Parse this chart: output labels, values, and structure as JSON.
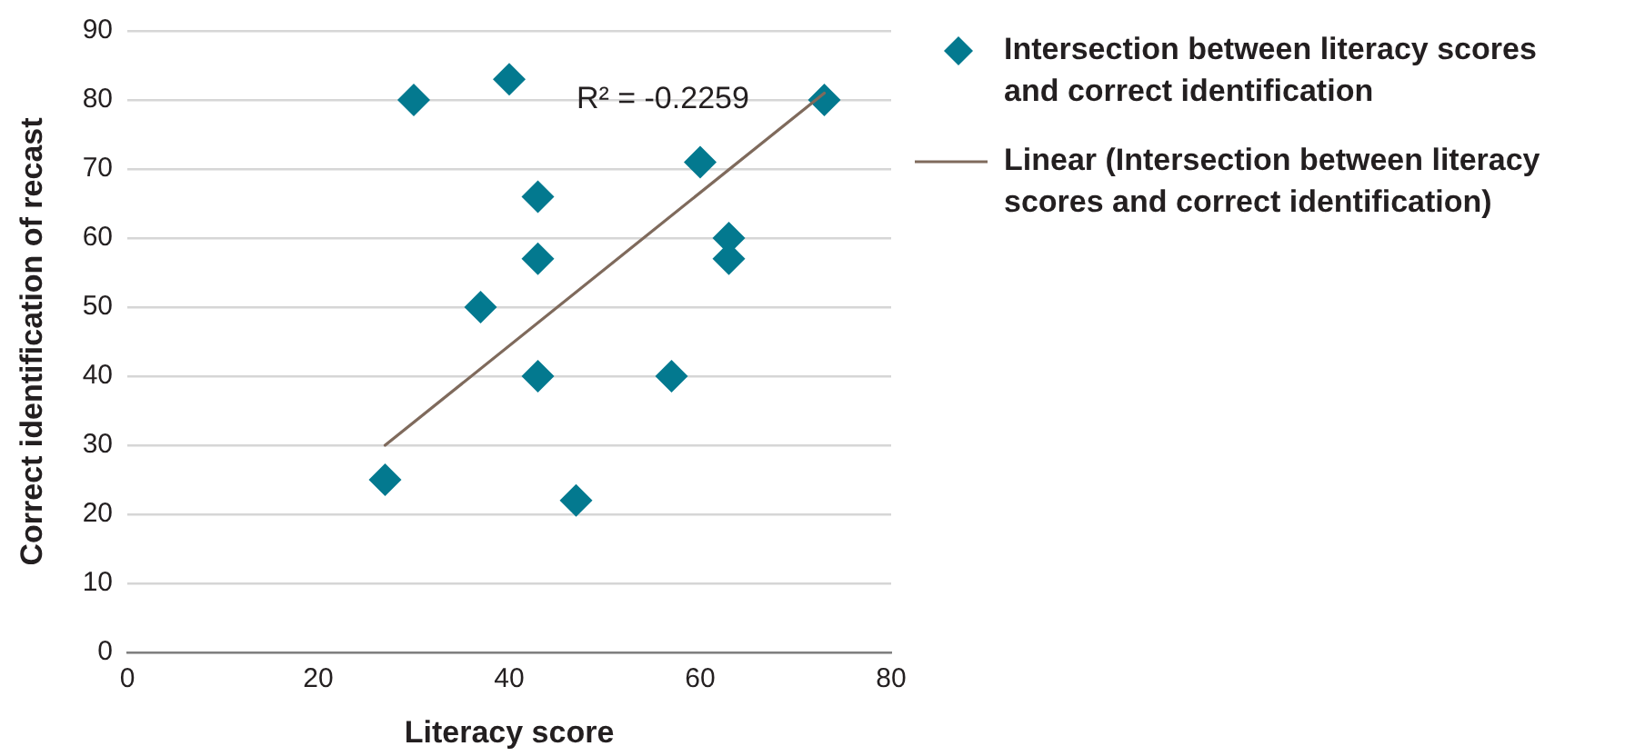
{
  "chart_data": {
    "type": "scatter",
    "xlabel": "Literacy score",
    "ylabel": "Correct identification of recast",
    "xlim": [
      0,
      80
    ],
    "xticks": [
      0,
      20,
      40,
      60,
      80
    ],
    "ylim": [
      0,
      90
    ],
    "yticks": [
      0,
      10,
      20,
      30,
      40,
      50,
      60,
      70,
      80,
      90
    ],
    "grid": "y",
    "legend": "right",
    "series": [
      {
        "name": "Intersection between literacy scores and correct identification",
        "color": "#03798f",
        "marker": "diamond",
        "x": [
          27,
          30,
          37,
          40,
          43,
          43,
          43,
          47,
          57,
          60,
          63,
          63,
          73
        ],
        "values": [
          25,
          80,
          50,
          83,
          66,
          57,
          40,
          22,
          40,
          71,
          60,
          57,
          80
        ]
      },
      {
        "name": "Linear (Intersection between literacy scores and correct identification)",
        "type": "line",
        "color": "#7f6a5c",
        "marker": "none",
        "line_style": "solid",
        "x": [
          27,
          73
        ],
        "values": [
          30,
          81
        ]
      }
    ],
    "annotations": [
      "R² = -0.2259"
    ]
  }
}
